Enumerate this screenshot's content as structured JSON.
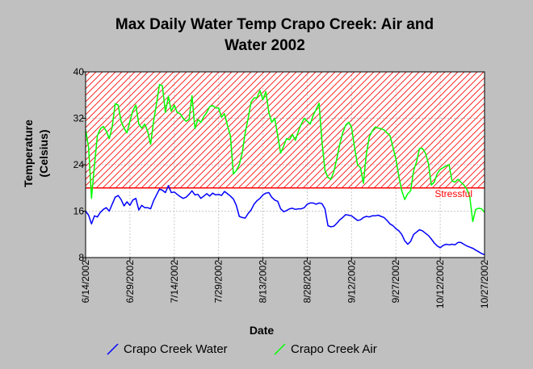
{
  "chart_data": {
    "type": "line",
    "title_line1": "Max Daily Water Temp Crapo Creek: Air and",
    "title_line2": "Water 2002",
    "xlabel": "Date",
    "ylabel_line1": "Temperature",
    "ylabel_line2": "(Celsius)",
    "x_tick_labels": [
      "6/14/2002",
      "6/29/2002",
      "7/14/2002",
      "7/29/2002",
      "8/13/2002",
      "8/28/2002",
      "9/12/2002",
      "9/27/2002",
      "10/12/2002",
      "10/27/2002"
    ],
    "y_ticks": [
      8,
      16,
      24,
      32,
      40
    ],
    "ylim": [
      8,
      40
    ],
    "xlim": [
      "6/14/2002",
      "10/27/2002"
    ],
    "annotation": {
      "label": "Stressful",
      "region_from": 20,
      "region_to": 40,
      "color": "#ff0000"
    },
    "series": [
      {
        "name": "Crapo Creek Water",
        "color": "#0000ff",
        "points": [
          [
            "6/14/2002",
            16.0
          ],
          [
            "6/15/2002",
            15.3
          ],
          [
            "6/16/2002",
            13.8
          ],
          [
            "6/17/2002",
            15.2
          ],
          [
            "6/18/2002",
            15.0
          ],
          [
            "6/19/2002",
            15.8
          ],
          [
            "6/20/2002",
            16.3
          ],
          [
            "6/21/2002",
            16.6
          ],
          [
            "6/22/2002",
            16.0
          ],
          [
            "6/23/2002",
            17.2
          ],
          [
            "6/24/2002",
            18.4
          ],
          [
            "6/25/2002",
            18.7
          ],
          [
            "6/26/2002",
            18.0
          ],
          [
            "6/27/2002",
            16.9
          ],
          [
            "6/28/2002",
            17.6
          ],
          [
            "6/29/2002",
            17.0
          ],
          [
            "6/30/2002",
            17.9
          ],
          [
            "7/1/2002",
            18.2
          ],
          [
            "7/2/2002",
            16.2
          ],
          [
            "7/3/2002",
            17.0
          ],
          [
            "7/4/2002",
            16.6
          ],
          [
            "7/5/2002",
            16.6
          ],
          [
            "7/6/2002",
            16.4
          ],
          [
            "7/7/2002",
            17.8
          ],
          [
            "7/8/2002",
            18.8
          ],
          [
            "7/9/2002",
            19.8
          ],
          [
            "7/10/2002",
            19.6
          ],
          [
            "7/11/2002",
            19.2
          ],
          [
            "7/12/2002",
            20.4
          ],
          [
            "7/13/2002",
            19.2
          ],
          [
            "7/14/2002",
            19.3
          ],
          [
            "7/15/2002",
            18.9
          ],
          [
            "7/16/2002",
            18.5
          ],
          [
            "7/17/2002",
            18.2
          ],
          [
            "7/18/2002",
            18.4
          ],
          [
            "7/19/2002",
            18.9
          ],
          [
            "7/20/2002",
            19.5
          ],
          [
            "7/21/2002",
            18.8
          ],
          [
            "7/22/2002",
            18.9
          ],
          [
            "7/23/2002",
            18.2
          ],
          [
            "7/24/2002",
            18.6
          ],
          [
            "7/25/2002",
            19.0
          ],
          [
            "7/26/2002",
            18.6
          ],
          [
            "7/27/2002",
            19.1
          ],
          [
            "7/28/2002",
            18.8
          ],
          [
            "7/29/2002",
            18.9
          ],
          [
            "7/30/2002",
            18.7
          ],
          [
            "7/31/2002",
            19.4
          ],
          [
            "8/1/2002",
            19.0
          ],
          [
            "8/2/2002",
            18.6
          ],
          [
            "8/3/2002",
            18.1
          ],
          [
            "8/4/2002",
            17.0
          ],
          [
            "8/5/2002",
            15.1
          ],
          [
            "8/6/2002",
            14.9
          ],
          [
            "8/7/2002",
            14.8
          ],
          [
            "8/8/2002",
            15.6
          ],
          [
            "8/9/2002",
            16.2
          ],
          [
            "8/10/2002",
            17.2
          ],
          [
            "8/11/2002",
            17.8
          ],
          [
            "8/12/2002",
            18.2
          ],
          [
            "8/13/2002",
            18.8
          ],
          [
            "8/14/2002",
            19.1
          ],
          [
            "8/15/2002",
            19.2
          ],
          [
            "8/16/2002",
            18.4
          ],
          [
            "8/17/2002",
            17.9
          ],
          [
            "8/18/2002",
            17.7
          ],
          [
            "8/19/2002",
            16.4
          ],
          [
            "8/20/2002",
            15.9
          ],
          [
            "8/21/2002",
            16.1
          ],
          [
            "8/22/2002",
            16.4
          ],
          [
            "8/23/2002",
            16.5
          ],
          [
            "8/24/2002",
            16.3
          ],
          [
            "8/25/2002",
            16.4
          ],
          [
            "8/26/2002",
            16.4
          ],
          [
            "8/27/2002",
            16.6
          ],
          [
            "8/28/2002",
            17.2
          ],
          [
            "8/29/2002",
            17.4
          ],
          [
            "8/30/2002",
            17.4
          ],
          [
            "8/31/2002",
            17.2
          ],
          [
            "9/1/2002",
            17.4
          ],
          [
            "9/2/2002",
            17.3
          ],
          [
            "9/3/2002",
            16.4
          ],
          [
            "9/4/2002",
            13.5
          ],
          [
            "9/5/2002",
            13.3
          ],
          [
            "9/6/2002",
            13.4
          ],
          [
            "9/7/2002",
            13.9
          ],
          [
            "9/8/2002",
            14.5
          ],
          [
            "9/9/2002",
            14.9
          ],
          [
            "9/10/2002",
            15.4
          ],
          [
            "9/11/2002",
            15.3
          ],
          [
            "9/12/2002",
            15.2
          ],
          [
            "9/13/2002",
            14.8
          ],
          [
            "9/14/2002",
            14.4
          ],
          [
            "9/15/2002",
            14.5
          ],
          [
            "9/16/2002",
            14.9
          ],
          [
            "9/17/2002",
            15.1
          ],
          [
            "9/18/2002",
            15.0
          ],
          [
            "9/19/2002",
            15.2
          ],
          [
            "9/20/2002",
            15.2
          ],
          [
            "9/21/2002",
            15.3
          ],
          [
            "9/22/2002",
            15.1
          ],
          [
            "9/23/2002",
            14.9
          ],
          [
            "9/24/2002",
            14.4
          ],
          [
            "9/25/2002",
            13.8
          ],
          [
            "9/26/2002",
            13.5
          ],
          [
            "9/27/2002",
            13.0
          ],
          [
            "9/28/2002",
            12.6
          ],
          [
            "9/29/2002",
            12.0
          ],
          [
            "9/30/2002",
            10.9
          ],
          [
            "10/1/2002",
            10.3
          ],
          [
            "10/2/2002",
            10.8
          ],
          [
            "10/3/2002",
            12.0
          ],
          [
            "10/4/2002",
            12.4
          ],
          [
            "10/5/2002",
            12.8
          ],
          [
            "10/6/2002",
            12.6
          ],
          [
            "10/7/2002",
            12.2
          ],
          [
            "10/8/2002",
            11.8
          ],
          [
            "10/9/2002",
            11.2
          ],
          [
            "10/10/2002",
            10.5
          ],
          [
            "10/11/2002",
            10.0
          ],
          [
            "10/12/2002",
            9.7
          ],
          [
            "10/13/2002",
            10.1
          ],
          [
            "10/14/2002",
            10.3
          ],
          [
            "10/15/2002",
            10.2
          ],
          [
            "10/16/2002",
            10.3
          ],
          [
            "10/17/2002",
            10.2
          ],
          [
            "10/18/2002",
            10.6
          ],
          [
            "10/19/2002",
            10.6
          ],
          [
            "10/20/2002",
            10.3
          ],
          [
            "10/21/2002",
            10.0
          ],
          [
            "10/22/2002",
            9.8
          ],
          [
            "10/23/2002",
            9.6
          ],
          [
            "10/24/2002",
            9.3
          ],
          [
            "10/25/2002",
            9.0
          ],
          [
            "10/26/2002",
            8.7
          ],
          [
            "10/27/2002",
            8.5
          ]
        ]
      },
      {
        "name": "Crapo Creek Air",
        "color": "#00ff00",
        "points": [
          [
            "6/14/2002",
            30.0
          ],
          [
            "6/15/2002",
            27.0
          ],
          [
            "6/16/2002",
            18.2
          ],
          [
            "6/17/2002",
            24.0
          ],
          [
            "6/18/2002",
            29.0
          ],
          [
            "6/19/2002",
            30.2
          ],
          [
            "6/20/2002",
            30.6
          ],
          [
            "6/21/2002",
            29.8
          ],
          [
            "6/22/2002",
            28.5
          ],
          [
            "6/23/2002",
            30.5
          ],
          [
            "6/24/2002",
            34.5
          ],
          [
            "6/25/2002",
            34.3
          ],
          [
            "6/26/2002",
            31.5
          ],
          [
            "6/27/2002",
            30.3
          ],
          [
            "6/28/2002",
            29.5
          ],
          [
            "6/29/2002",
            31.5
          ],
          [
            "6/30/2002",
            33.3
          ],
          [
            "7/1/2002",
            34.3
          ],
          [
            "7/2/2002",
            31.0
          ],
          [
            "7/3/2002",
            30.3
          ],
          [
            "7/4/2002",
            31.0
          ],
          [
            "7/5/2002",
            29.8
          ],
          [
            "7/6/2002",
            27.5
          ],
          [
            "7/7/2002",
            31.5
          ],
          [
            "7/8/2002",
            34.5
          ],
          [
            "7/9/2002",
            37.8
          ],
          [
            "7/10/2002",
            37.6
          ],
          [
            "7/11/2002",
            33.0
          ],
          [
            "7/12/2002",
            35.8
          ],
          [
            "7/13/2002",
            33.2
          ],
          [
            "7/14/2002",
            34.3
          ],
          [
            "7/15/2002",
            33.0
          ],
          [
            "7/16/2002",
            32.8
          ],
          [
            "7/17/2002",
            32.0
          ],
          [
            "7/18/2002",
            31.5
          ],
          [
            "7/19/2002",
            31.8
          ],
          [
            "7/20/2002",
            35.9
          ],
          [
            "7/21/2002",
            30.2
          ],
          [
            "7/22/2002",
            31.8
          ],
          [
            "7/23/2002",
            31.3
          ],
          [
            "7/24/2002",
            32.3
          ],
          [
            "7/25/2002",
            33.0
          ],
          [
            "7/26/2002",
            34.0
          ],
          [
            "7/27/2002",
            34.2
          ],
          [
            "7/28/2002",
            33.8
          ],
          [
            "7/29/2002",
            33.8
          ],
          [
            "7/30/2002",
            32.2
          ],
          [
            "7/31/2002",
            32.8
          ],
          [
            "8/1/2002",
            30.8
          ],
          [
            "8/2/2002",
            29.0
          ],
          [
            "8/3/2002",
            22.4
          ],
          [
            "8/4/2002",
            23.0
          ],
          [
            "8/5/2002",
            24.0
          ],
          [
            "8/6/2002",
            26.0
          ],
          [
            "8/7/2002",
            29.5
          ],
          [
            "8/8/2002",
            32.0
          ],
          [
            "8/9/2002",
            34.8
          ],
          [
            "8/10/2002",
            35.5
          ],
          [
            "8/11/2002",
            35.5
          ],
          [
            "8/12/2002",
            36.8
          ],
          [
            "8/13/2002",
            35.2
          ],
          [
            "8/14/2002",
            36.6
          ],
          [
            "8/15/2002",
            33.0
          ],
          [
            "8/16/2002",
            31.3
          ],
          [
            "8/17/2002",
            32.0
          ],
          [
            "8/18/2002",
            29.0
          ],
          [
            "8/19/2002",
            26.0
          ],
          [
            "8/20/2002",
            27.2
          ],
          [
            "8/21/2002",
            28.5
          ],
          [
            "8/22/2002",
            28.3
          ],
          [
            "8/23/2002",
            29.2
          ],
          [
            "8/24/2002",
            28.2
          ],
          [
            "8/25/2002",
            29.8
          ],
          [
            "8/26/2002",
            31.0
          ],
          [
            "8/27/2002",
            32.0
          ],
          [
            "8/28/2002",
            31.5
          ],
          [
            "8/29/2002",
            31.0
          ],
          [
            "8/30/2002",
            32.5
          ],
          [
            "8/31/2002",
            33.5
          ],
          [
            "9/1/2002",
            34.6
          ],
          [
            "9/2/2002",
            28.0
          ],
          [
            "9/3/2002",
            23.0
          ],
          [
            "9/4/2002",
            21.8
          ],
          [
            "9/5/2002",
            21.5
          ],
          [
            "9/6/2002",
            22.8
          ],
          [
            "9/7/2002",
            25.0
          ],
          [
            "9/8/2002",
            27.5
          ],
          [
            "9/9/2002",
            29.5
          ],
          [
            "9/10/2002",
            30.8
          ],
          [
            "9/11/2002",
            31.3
          ],
          [
            "9/12/2002",
            30.5
          ],
          [
            "9/13/2002",
            27.0
          ],
          [
            "9/14/2002",
            24.0
          ],
          [
            "9/15/2002",
            23.5
          ],
          [
            "9/16/2002",
            20.8
          ],
          [
            "9/17/2002",
            25.8
          ],
          [
            "9/18/2002",
            28.8
          ],
          [
            "9/19/2002",
            29.8
          ],
          [
            "9/20/2002",
            30.5
          ],
          [
            "9/21/2002",
            30.3
          ],
          [
            "9/22/2002",
            30.2
          ],
          [
            "9/23/2002",
            30.0
          ],
          [
            "9/24/2002",
            29.5
          ],
          [
            "9/25/2002",
            29.0
          ],
          [
            "9/26/2002",
            27.0
          ],
          [
            "9/27/2002",
            25.0
          ],
          [
            "9/28/2002",
            22.0
          ],
          [
            "9/29/2002",
            19.5
          ],
          [
            "9/30/2002",
            18.0
          ],
          [
            "10/1/2002",
            19.0
          ],
          [
            "10/2/2002",
            19.5
          ],
          [
            "10/3/2002",
            23.0
          ],
          [
            "10/4/2002",
            24.5
          ],
          [
            "10/5/2002",
            26.8
          ],
          [
            "10/6/2002",
            26.8
          ],
          [
            "10/7/2002",
            26.0
          ],
          [
            "10/8/2002",
            24.2
          ],
          [
            "10/9/2002",
            20.5
          ],
          [
            "10/10/2002",
            21.0
          ],
          [
            "10/11/2002",
            22.5
          ],
          [
            "10/12/2002",
            23.2
          ],
          [
            "10/13/2002",
            23.5
          ],
          [
            "10/14/2002",
            23.8
          ],
          [
            "10/15/2002",
            24.0
          ],
          [
            "10/16/2002",
            21.2
          ],
          [
            "10/17/2002",
            21.0
          ],
          [
            "10/18/2002",
            21.5
          ],
          [
            "10/19/2002",
            21.0
          ],
          [
            "10/20/2002",
            20.5
          ],
          [
            "10/21/2002",
            19.8
          ],
          [
            "10/22/2002",
            18.5
          ],
          [
            "10/23/2002",
            14.2
          ],
          [
            "10/24/2002",
            16.3
          ],
          [
            "10/25/2002",
            16.5
          ],
          [
            "10/26/2002",
            16.4
          ],
          [
            "10/27/2002",
            15.8
          ]
        ]
      }
    ],
    "legend_position": "bottom",
    "grid": true
  }
}
